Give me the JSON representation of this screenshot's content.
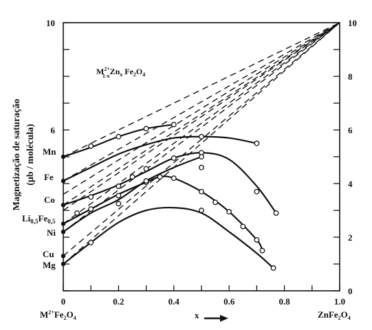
{
  "chart_data": {
    "type": "line",
    "title_formula": {
      "base": "M",
      "sub1": "1-x",
      "sup": "2+",
      "mid": "Zn",
      "sub2": "x",
      "end": " Fe",
      "sub3": "2",
      "tail": "O",
      "sub4": "4"
    },
    "ylabel_line1": "Magnetização de saturação",
    "ylabel_line2": "(μb / molécula)",
    "x_left_label": {
      "base": "M",
      "sup": "2+",
      "mid": "Fe",
      "sub1": "2",
      "end": "O",
      "sub2": "4"
    },
    "x_right_label": {
      "base": "ZnFe",
      "sub1": "2",
      "end": "O",
      "sub2": "4"
    },
    "x_arrow_label": "x",
    "xlim": [
      0,
      1.0
    ],
    "ylim": [
      0,
      10
    ],
    "x_ticks": [
      "0",
      "0.2",
      "0.4",
      "0.6",
      "0.8",
      "1.0"
    ],
    "y_left_ticks": [
      "10",
      "6"
    ],
    "y_right_ticks": [
      "10",
      "8",
      "6",
      "4",
      "2",
      "0"
    ],
    "ideal_convergence_point": [
      1.0,
      10
    ],
    "series": [
      {
        "name": "Mn",
        "label": "Mn",
        "start": 5.0,
        "points": [
          [
            0,
            5.0
          ],
          [
            0.1,
            5.4
          ],
          [
            0.2,
            5.75
          ],
          [
            0.3,
            6.05
          ],
          [
            0.4,
            6.2
          ]
        ],
        "curve": [
          [
            0,
            5.0
          ],
          [
            0.1,
            5.35
          ],
          [
            0.2,
            5.75
          ],
          [
            0.3,
            6.05
          ],
          [
            0.4,
            6.2
          ]
        ],
        "dashed": [
          [
            0,
            5.0
          ],
          [
            1.0,
            10
          ]
        ]
      },
      {
        "name": "Fe",
        "label": "Fe",
        "start": 4.1,
        "points": [
          [
            0.5,
            5.75
          ],
          [
            0.7,
            5.5
          ]
        ],
        "curve": [
          [
            0,
            4.1
          ],
          [
            0.1,
            4.6
          ],
          [
            0.2,
            5.1
          ],
          [
            0.3,
            5.45
          ],
          [
            0.4,
            5.7
          ],
          [
            0.5,
            5.75
          ],
          [
            0.6,
            5.7
          ],
          [
            0.7,
            5.5
          ]
        ],
        "dashed": [
          [
            0,
            4.1
          ],
          [
            1.0,
            10
          ]
        ]
      },
      {
        "name": "Co",
        "label": "Co",
        "start": 3.2,
        "points": [
          [
            0.1,
            3.5
          ],
          [
            0.2,
            3.9
          ],
          [
            0.25,
            4.25
          ],
          [
            0.3,
            4.55
          ],
          [
            0.4,
            4.95
          ],
          [
            0.5,
            5.15
          ],
          [
            0.7,
            3.7
          ],
          [
            0.77,
            2.9
          ]
        ],
        "curve": [
          [
            0,
            3.2
          ],
          [
            0.1,
            3.55
          ],
          [
            0.2,
            3.95
          ],
          [
            0.3,
            4.45
          ],
          [
            0.4,
            4.95
          ],
          [
            0.5,
            5.15
          ],
          [
            0.6,
            4.9
          ],
          [
            0.7,
            3.9
          ],
          [
            0.77,
            2.9
          ]
        ],
        "dashed": [
          [
            0,
            3.2
          ],
          [
            1.0,
            10
          ]
        ]
      },
      {
        "name": "Li",
        "label": "Li",
        "start": 2.5,
        "points": [
          [
            0.05,
            2.9
          ],
          [
            0.1,
            3.05
          ],
          [
            0.2,
            3.55
          ],
          [
            0.3,
            4.05
          ],
          [
            0.35,
            4.25
          ],
          [
            0.4,
            4.2
          ],
          [
            0.5,
            3.7
          ],
          [
            0.55,
            3.3
          ],
          [
            0.6,
            2.95
          ],
          [
            0.65,
            2.4
          ],
          [
            0.7,
            1.9
          ],
          [
            0.72,
            1.5
          ]
        ],
        "curve": [
          [
            0,
            2.5
          ],
          [
            0.1,
            3.05
          ],
          [
            0.2,
            3.6
          ],
          [
            0.3,
            4.05
          ],
          [
            0.35,
            4.25
          ],
          [
            0.4,
            4.2
          ],
          [
            0.5,
            3.7
          ],
          [
            0.6,
            2.95
          ],
          [
            0.7,
            1.9
          ],
          [
            0.72,
            1.5
          ]
        ],
        "dashed": [
          [
            0,
            2.5
          ],
          [
            1.0,
            10
          ]
        ]
      },
      {
        "name": "Ni",
        "label": "Ni",
        "start": 2.2,
        "points": [
          [
            0.2,
            3.25
          ],
          [
            0.3,
            4.1
          ],
          [
            0.5,
            5.0
          ],
          [
            0.5,
            4.6
          ]
        ],
        "curve": [
          [
            0,
            2.2
          ],
          [
            0.1,
            2.9
          ],
          [
            0.2,
            3.4
          ],
          [
            0.3,
            4.1
          ],
          [
            0.4,
            4.6
          ],
          [
            0.5,
            5.0
          ]
        ],
        "dashed": [
          [
            0,
            2.2
          ],
          [
            1.0,
            10
          ]
        ]
      },
      {
        "name": "Cu",
        "label": "Cu",
        "start": 1.3,
        "points": [],
        "curve": [],
        "dashed": [
          [
            0,
            1.3
          ],
          [
            1.0,
            10
          ]
        ]
      },
      {
        "name": "Mg",
        "label": "Mg",
        "start": 1.0,
        "points": [
          [
            0,
            1.0
          ],
          [
            0.1,
            1.8
          ],
          [
            0.5,
            3.0
          ],
          [
            0.76,
            0.85
          ]
        ],
        "curve": [
          [
            0,
            1.0
          ],
          [
            0.1,
            1.8
          ],
          [
            0.2,
            2.55
          ],
          [
            0.3,
            3.0
          ],
          [
            0.4,
            3.1
          ],
          [
            0.5,
            2.9
          ],
          [
            0.6,
            2.2
          ],
          [
            0.7,
            1.4
          ],
          [
            0.76,
            0.85
          ]
        ],
        "dashed": [
          [
            0,
            1.0
          ],
          [
            1.0,
            10
          ]
        ]
      }
    ],
    "extra_dashed_starts": [
      3.0,
      3.6
    ]
  },
  "li_label": {
    "base": "Li",
    "sub1": "0,5",
    "mid": "Fe",
    "sub2": "0,5"
  },
  "colors": {
    "ink": "#111111",
    "background": "#ffffff"
  }
}
